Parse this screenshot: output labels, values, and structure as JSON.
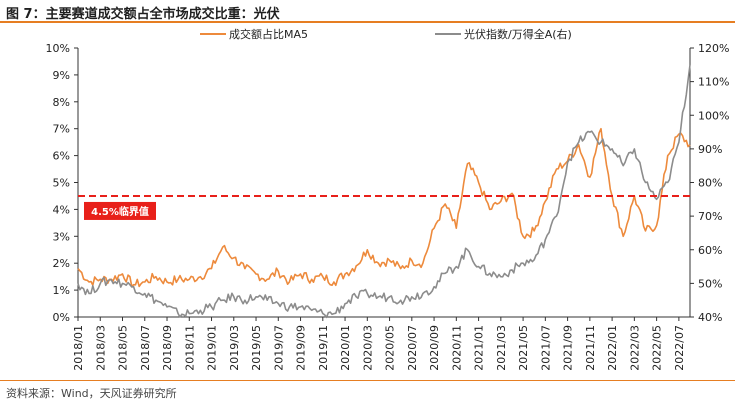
{
  "figure": {
    "title": "图 7：主要赛道成交额占全市场成交比重：光伏",
    "source": "资料来源：Wind，天风证券研究所"
  },
  "colors": {
    "share": "#ed8a3c",
    "index": "#8c8c8c",
    "threshold": "#e8201a",
    "badge": "#e8201a",
    "accent_rule": "#e67e22"
  },
  "chart_data": {
    "type": "line",
    "title": "",
    "threshold": {
      "value": 4.5,
      "axis": "left",
      "label": "4.5%临界值"
    },
    "legend": {
      "position": "top",
      "entries": [
        "成交额占比MA5",
        "光伏指数/万得全A(右)"
      ]
    },
    "x_ticks": [
      "2018/01",
      "2018/03",
      "2018/05",
      "2018/07",
      "2018/09",
      "2018/11",
      "2019/01",
      "2019/03",
      "2019/05",
      "2019/07",
      "2019/09",
      "2019/11",
      "2020/01",
      "2020/03",
      "2020/05",
      "2020/07",
      "2020/09",
      "2020/11",
      "2021/01",
      "2021/03",
      "2021/05",
      "2021/07",
      "2021/09",
      "2021/11",
      "2022/01",
      "2022/03",
      "2022/05",
      "2022/07"
    ],
    "y_left": {
      "ticks": [
        "0%",
        "1%",
        "2%",
        "3%",
        "4%",
        "5%",
        "6%",
        "7%",
        "8%",
        "9%",
        "10%"
      ],
      "range": [
        0,
        10
      ],
      "unit": "%"
    },
    "y_right": {
      "ticks": [
        "40%",
        "50%",
        "60%",
        "70%",
        "80%",
        "90%",
        "100%",
        "110%",
        "120%"
      ],
      "range": [
        40,
        120
      ],
      "unit": "%"
    },
    "series": [
      {
        "name": "成交额占比MA5",
        "axis": "left",
        "x": [
          "2018/01",
          "2018/02",
          "2018/03",
          "2018/04",
          "2018/05",
          "2018/06",
          "2018/07",
          "2018/08",
          "2018/09",
          "2018/10",
          "2018/11",
          "2018/12",
          "2019/01",
          "2019/02",
          "2019/03",
          "2019/04",
          "2019/05",
          "2019/06",
          "2019/07",
          "2019/08",
          "2019/09",
          "2019/10",
          "2019/11",
          "2019/12",
          "2020/01",
          "2020/02",
          "2020/03",
          "2020/04",
          "2020/05",
          "2020/06",
          "2020/07",
          "2020/08",
          "2020/09",
          "2020/10",
          "2020/11",
          "2020/12",
          "2021/01",
          "2021/02",
          "2021/03",
          "2021/04",
          "2021/05",
          "2021/06",
          "2021/07",
          "2021/08",
          "2021/09",
          "2021/10",
          "2021/11",
          "2021/12",
          "2022/01",
          "2022/02",
          "2022/03",
          "2022/04",
          "2022/05",
          "2022/06",
          "2022/07",
          "2022/08"
        ],
        "values": [
          1.8,
          1.3,
          1.4,
          1.4,
          1.6,
          1.2,
          1.3,
          1.5,
          1.3,
          1.4,
          1.4,
          1.5,
          1.8,
          2.6,
          2.2,
          1.8,
          1.6,
          1.4,
          1.7,
          1.3,
          1.6,
          1.4,
          1.5,
          1.3,
          1.6,
          1.9,
          2.5,
          2.0,
          2.1,
          1.8,
          2.1,
          2.0,
          3.3,
          4.2,
          3.3,
          5.7,
          5.0,
          4.0,
          4.3,
          4.6,
          3.0,
          3.2,
          4.3,
          5.5,
          5.8,
          6.4,
          5.2,
          7.0,
          4.5,
          3.0,
          4.5,
          3.2,
          3.4,
          6.0,
          6.8,
          6.4
        ]
      },
      {
        "name": "光伏指数/万得全A(右)",
        "axis": "right",
        "x": [
          "2018/01",
          "2018/02",
          "2018/03",
          "2018/04",
          "2018/05",
          "2018/06",
          "2018/07",
          "2018/08",
          "2018/09",
          "2018/10",
          "2018/11",
          "2018/12",
          "2019/01",
          "2019/02",
          "2019/03",
          "2019/04",
          "2019/05",
          "2019/06",
          "2019/07",
          "2019/08",
          "2019/09",
          "2019/10",
          "2019/11",
          "2019/12",
          "2020/01",
          "2020/02",
          "2020/03",
          "2020/04",
          "2020/05",
          "2020/06",
          "2020/07",
          "2020/08",
          "2020/09",
          "2020/10",
          "2020/11",
          "2020/12",
          "2021/01",
          "2021/02",
          "2021/03",
          "2021/04",
          "2021/05",
          "2021/06",
          "2021/07",
          "2021/08",
          "2021/09",
          "2021/10",
          "2021/11",
          "2021/12",
          "2022/01",
          "2022/02",
          "2022/03",
          "2022/04",
          "2022/05",
          "2022/06",
          "2022/07",
          "2022/08"
        ],
        "values": [
          50,
          47,
          50,
          51,
          50,
          49,
          47,
          45,
          43,
          41,
          41,
          42,
          43,
          45,
          46,
          45,
          46,
          45,
          44,
          43,
          43,
          42,
          41,
          41,
          44,
          46,
          47,
          46,
          46,
          45,
          46,
          47,
          49,
          53,
          55,
          60,
          55,
          53,
          52,
          54,
          56,
          57,
          63,
          70,
          86,
          92,
          95,
          92,
          90,
          85,
          90,
          80,
          75,
          80,
          92,
          115
        ]
      }
    ]
  }
}
